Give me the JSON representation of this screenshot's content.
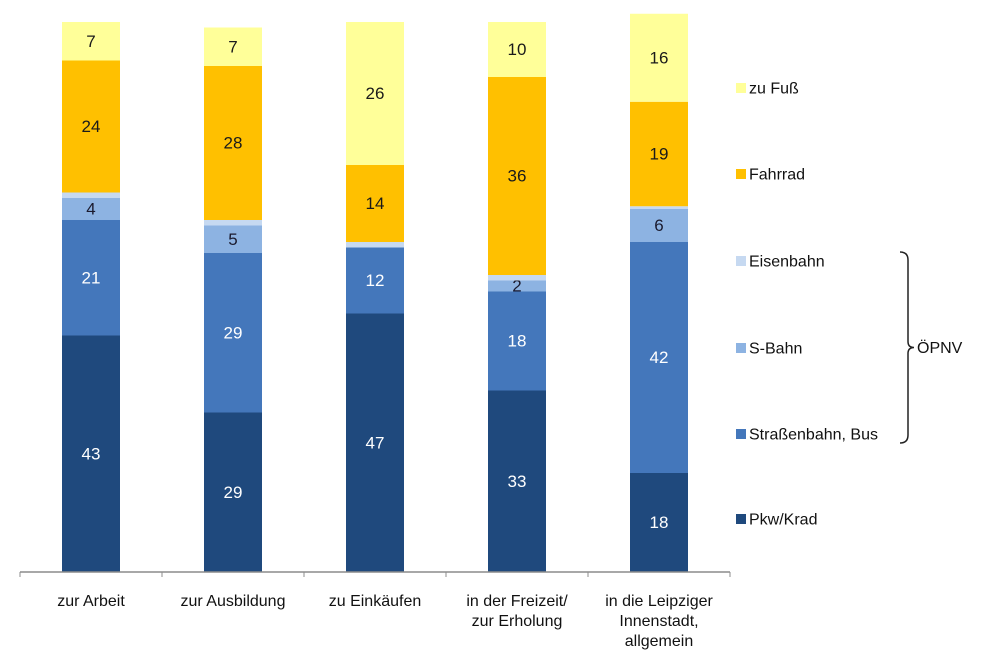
{
  "chart_data": {
    "type": "bar",
    "stacked": true,
    "title": "",
    "xlabel": "",
    "ylabel": "",
    "ylim": [
      0,
      100
    ],
    "unit": "%",
    "grid": false,
    "legend_position": "right",
    "categories": [
      [
        "zur Arbeit"
      ],
      [
        "zur Ausbildung"
      ],
      [
        "zu Einkäufen"
      ],
      [
        "in der Freizeit/",
        "zur Erholung"
      ],
      [
        "in die Leipziger",
        "Innenstadt,",
        "allgemein"
      ]
    ],
    "series": [
      {
        "name": "Pkw/Krad",
        "color": "#1F497D",
        "label_color": "#ffffff",
        "values": [
          43,
          29,
          47,
          33,
          18
        ],
        "labels": [
          "43",
          "29",
          "47",
          "33",
          "18"
        ]
      },
      {
        "name": "Straßenbahn, Bus",
        "color": "#4477BB",
        "label_color": "#ffffff",
        "values": [
          21,
          29,
          12,
          18,
          42
        ],
        "labels": [
          "21",
          "29",
          "12",
          "18",
          "42"
        ]
      },
      {
        "name": "S-Bahn",
        "color": "#8DB3E2",
        "label_color": "#1a1a2e",
        "values": [
          4,
          5,
          0,
          2,
          6
        ],
        "labels": [
          "4",
          "5",
          "",
          "2",
          "6"
        ]
      },
      {
        "name": "Eisenbahn",
        "color": "#C6D9F1",
        "label_color": "#1a1a2e",
        "values": [
          1,
          1,
          1,
          1,
          0.5
        ],
        "labels": [
          "",
          "",
          "",
          "",
          ""
        ]
      },
      {
        "name": "Fahrrad",
        "color": "#FFC000",
        "label_color": "#1a1a1a",
        "values": [
          24,
          28,
          14,
          36,
          19
        ],
        "labels": [
          "24",
          "28",
          "14",
          "36",
          "19"
        ]
      },
      {
        "name": "zu Fuß",
        "color": "#FFFF99",
        "label_color": "#1a1a1a",
        "values": [
          7,
          7,
          26,
          10,
          16
        ],
        "labels": [
          "7",
          "7",
          "26",
          "10",
          "16"
        ]
      }
    ],
    "legend_order": [
      "zu Fuß",
      "Fahrrad",
      "Eisenbahn",
      "S-Bahn",
      "Straßenbahn, Bus",
      "Pkw/Krad"
    ],
    "annotations": [
      {
        "type": "brace",
        "text": "ÖPNV",
        "groups": [
          "Eisenbahn",
          "S-Bahn",
          "Straßenbahn, Bus"
        ]
      }
    ]
  }
}
